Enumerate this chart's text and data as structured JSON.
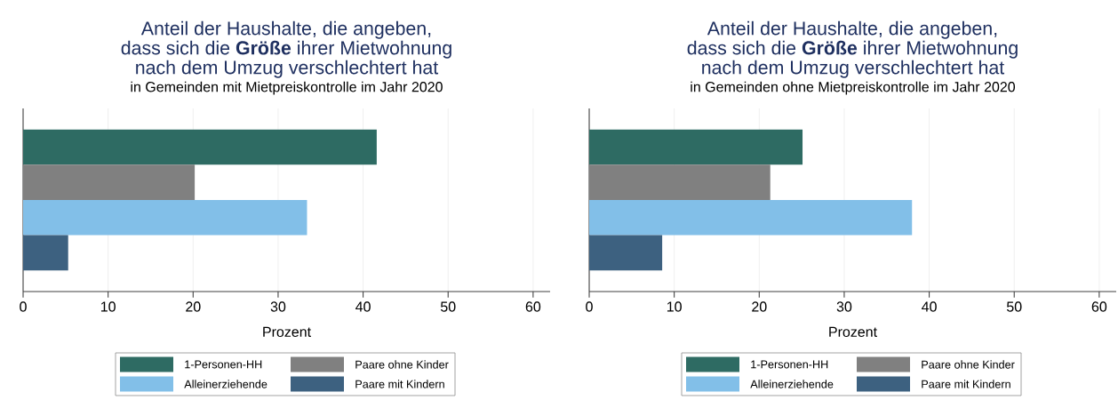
{
  "chart_data": [
    {
      "type": "bar",
      "orientation": "horizontal",
      "title": "Anteil der Haushalte, die angeben, dass sich die **Größe** ihrer Mietwohnung nach dem Umzug verschlechtert hat",
      "subtitle": "in Gemeinden mit Mietpreiskontrolle im Jahr 2020",
      "xlabel": "Prozent",
      "categories": [
        null
      ],
      "series": [
        {
          "name": "1-Personen-HH",
          "color": "#2e6b63",
          "values": [
            41.6
          ]
        },
        {
          "name": "Paare ohne Kinder",
          "color": "#808080",
          "values": [
            20.2
          ]
        },
        {
          "name": "Alleinerziehende",
          "color": "#82bfe8",
          "values": [
            33.4
          ]
        },
        {
          "name": "Paare mit Kindern",
          "color": "#3d6180",
          "values": [
            5.3
          ]
        }
      ],
      "xlim": [
        0,
        62
      ],
      "xticks": [
        0,
        10,
        20,
        30,
        40,
        50,
        60
      ],
      "grid": "x",
      "legend": "bottom",
      "tick_labels": "x"
    },
    {
      "type": "bar",
      "orientation": "horizontal",
      "title": "Anteil der Haushalte, die angeben, dass sich die **Größe** ihrer Mietwohnung nach dem Umzug verschlechtert hat",
      "subtitle": "in Gemeinden ohne Mietpreiskontrolle im Jahr 2020",
      "xlabel": "Prozent",
      "categories": [
        null
      ],
      "series": [
        {
          "name": "1-Personen-HH",
          "color": "#2e6b63",
          "values": [
            25.1
          ]
        },
        {
          "name": "Paare ohne Kinder",
          "color": "#808080",
          "values": [
            21.3
          ]
        },
        {
          "name": "Alleinerziehende",
          "color": "#82bfe8",
          "values": [
            38.0
          ]
        },
        {
          "name": "Paare mit Kindern",
          "color": "#3d6180",
          "values": [
            8.6
          ]
        }
      ],
      "xlim": [
        0,
        62
      ],
      "xticks": [
        0,
        10,
        20,
        30,
        40,
        50,
        60
      ],
      "grid": "x",
      "legend": "bottom",
      "tick_labels": "x"
    }
  ]
}
